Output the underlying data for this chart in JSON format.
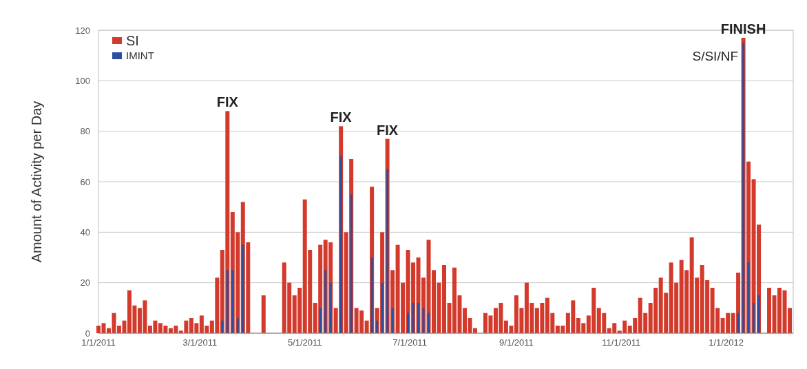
{
  "chart_data": {
    "type": "bar",
    "ylabel": "Amount of Activity per Day",
    "x": [
      "2011-01-01",
      "2011-01-04",
      "2011-01-07",
      "2011-01-10",
      "2011-01-13",
      "2011-01-16",
      "2011-01-19",
      "2011-01-22",
      "2011-01-25",
      "2011-01-28",
      "2011-01-31",
      "2011-02-03",
      "2011-02-06",
      "2011-02-09",
      "2011-02-12",
      "2011-02-15",
      "2011-02-18",
      "2011-02-21",
      "2011-02-24",
      "2011-02-27",
      "2011-03-02",
      "2011-03-05",
      "2011-03-08",
      "2011-03-11",
      "2011-03-14",
      "2011-03-17",
      "2011-03-20",
      "2011-03-23",
      "2011-03-26",
      "2011-03-29",
      "2011-04-01",
      "2011-04-04",
      "2011-04-07",
      "2011-04-10",
      "2011-04-13",
      "2011-04-16",
      "2011-04-19",
      "2011-04-22",
      "2011-04-25",
      "2011-04-28",
      "2011-05-01",
      "2011-05-04",
      "2011-05-07",
      "2011-05-10",
      "2011-05-13",
      "2011-05-16",
      "2011-05-19",
      "2011-05-22",
      "2011-05-25",
      "2011-05-28",
      "2011-05-31",
      "2011-06-03",
      "2011-06-06",
      "2011-06-09",
      "2011-06-12",
      "2011-06-15",
      "2011-06-18",
      "2011-06-21",
      "2011-06-24",
      "2011-06-27",
      "2011-06-30",
      "2011-07-03",
      "2011-07-06",
      "2011-07-09",
      "2011-07-12",
      "2011-07-15",
      "2011-07-18",
      "2011-07-21",
      "2011-07-24",
      "2011-07-27",
      "2011-07-30",
      "2011-08-02",
      "2011-08-05",
      "2011-08-08",
      "2011-08-11",
      "2011-08-14",
      "2011-08-17",
      "2011-08-20",
      "2011-08-23",
      "2011-08-26",
      "2011-08-29",
      "2011-09-01",
      "2011-09-04",
      "2011-09-07",
      "2011-09-10",
      "2011-09-13",
      "2011-09-16",
      "2011-09-19",
      "2011-09-22",
      "2011-09-25",
      "2011-09-28",
      "2011-10-01",
      "2011-10-04",
      "2011-10-07",
      "2011-10-10",
      "2011-10-13",
      "2011-10-16",
      "2011-10-19",
      "2011-10-22",
      "2011-10-25",
      "2011-10-28",
      "2011-10-31",
      "2011-11-03",
      "2011-11-06",
      "2011-11-09",
      "2011-11-12",
      "2011-11-15",
      "2011-11-18",
      "2011-11-21",
      "2011-11-24",
      "2011-11-27",
      "2011-11-30",
      "2011-12-03",
      "2011-12-06",
      "2011-12-09",
      "2011-12-12",
      "2011-12-15",
      "2011-12-18",
      "2011-12-21",
      "2011-12-24",
      "2011-12-27",
      "2011-12-30",
      "2012-01-02",
      "2012-01-05",
      "2012-01-08",
      "2012-01-11",
      "2012-01-14",
      "2012-01-17",
      "2012-01-20",
      "2012-01-23",
      "2012-01-26",
      "2012-01-29",
      "2012-02-01",
      "2012-02-04",
      "2012-02-07"
    ],
    "series": [
      {
        "name": "SI",
        "color": "#d33a2c",
        "values": [
          3,
          4,
          2,
          8,
          3,
          5,
          17,
          11,
          10,
          13,
          3,
          5,
          4,
          3,
          2,
          3,
          1,
          5,
          6,
          4,
          7,
          3,
          5,
          22,
          33,
          88,
          48,
          40,
          52,
          36,
          0,
          0,
          15,
          0,
          0,
          0,
          28,
          20,
          15,
          18,
          53,
          33,
          12,
          35,
          37,
          36,
          10,
          82,
          40,
          69,
          10,
          9,
          5,
          58,
          10,
          40,
          77,
          25,
          35,
          20,
          33,
          28,
          30,
          22,
          37,
          25,
          20,
          27,
          12,
          26,
          15,
          10,
          6,
          2,
          0,
          8,
          7,
          10,
          12,
          5,
          3,
          15,
          10,
          20,
          12,
          10,
          12,
          14,
          8,
          3,
          3,
          8,
          13,
          6,
          4,
          7,
          18,
          10,
          8,
          2,
          4,
          1,
          5,
          3,
          6,
          14,
          8,
          12,
          18,
          22,
          16,
          28,
          20,
          29,
          25,
          38,
          22,
          27,
          21,
          18,
          10,
          6,
          8,
          8,
          24,
          117,
          68,
          61,
          43,
          0,
          18,
          15,
          18,
          17,
          10
        ]
      },
      {
        "name": "IMINT",
        "color": "#2b4f9e",
        "values": [
          0,
          0,
          0,
          0,
          0,
          0,
          0,
          0,
          0,
          0,
          0,
          0,
          0,
          0,
          0,
          0,
          0,
          0,
          0,
          0,
          0,
          0,
          0,
          0,
          5,
          25,
          25,
          6,
          35,
          0,
          0,
          0,
          0,
          0,
          0,
          0,
          0,
          0,
          0,
          0,
          0,
          0,
          0,
          10,
          25,
          20,
          0,
          70,
          0,
          55,
          0,
          0,
          0,
          30,
          5,
          20,
          65,
          10,
          0,
          0,
          8,
          12,
          12,
          10,
          8,
          0,
          0,
          0,
          0,
          0,
          0,
          0,
          0,
          0,
          0,
          0,
          0,
          0,
          0,
          0,
          0,
          0,
          0,
          0,
          0,
          0,
          0,
          0,
          0,
          0,
          0,
          0,
          0,
          0,
          0,
          0,
          0,
          0,
          0,
          0,
          0,
          0,
          0,
          0,
          0,
          0,
          0,
          0,
          0,
          0,
          0,
          0,
          0,
          0,
          0,
          0,
          0,
          0,
          0,
          0,
          0,
          0,
          0,
          0,
          8,
          115,
          28,
          12,
          15,
          0,
          0,
          0,
          0,
          0,
          0
        ]
      }
    ],
    "xlim": [
      "2011-01-01",
      "2012-02-09"
    ],
    "xticks": [
      {
        "value": "2011-01-01",
        "label": "1/1/2011"
      },
      {
        "value": "2011-03-01",
        "label": "3/1/2011"
      },
      {
        "value": "2011-05-01",
        "label": "5/1/2011"
      },
      {
        "value": "2011-07-01",
        "label": "7/1/2011"
      },
      {
        "value": "2011-09-01",
        "label": "9/1/2011"
      },
      {
        "value": "2011-11-01",
        "label": "11/1/2011"
      },
      {
        "value": "2012-01-01",
        "label": "1/1/2012"
      }
    ],
    "ylim": [
      0,
      120
    ],
    "yticks": [
      0,
      20,
      40,
      60,
      80,
      100,
      120
    ],
    "grid": "y",
    "legend": "top left",
    "annotations": [
      {
        "text": "FIX",
        "x": "2011-03-17",
        "y": 88
      },
      {
        "text": "FIX",
        "x": "2011-05-22",
        "y": 82
      },
      {
        "text": "FIX",
        "x": "2011-06-18",
        "y": 77
      },
      {
        "text": "FINISH",
        "x": "2012-01-11",
        "y": 117
      },
      "S/SI/NF"
    ]
  }
}
